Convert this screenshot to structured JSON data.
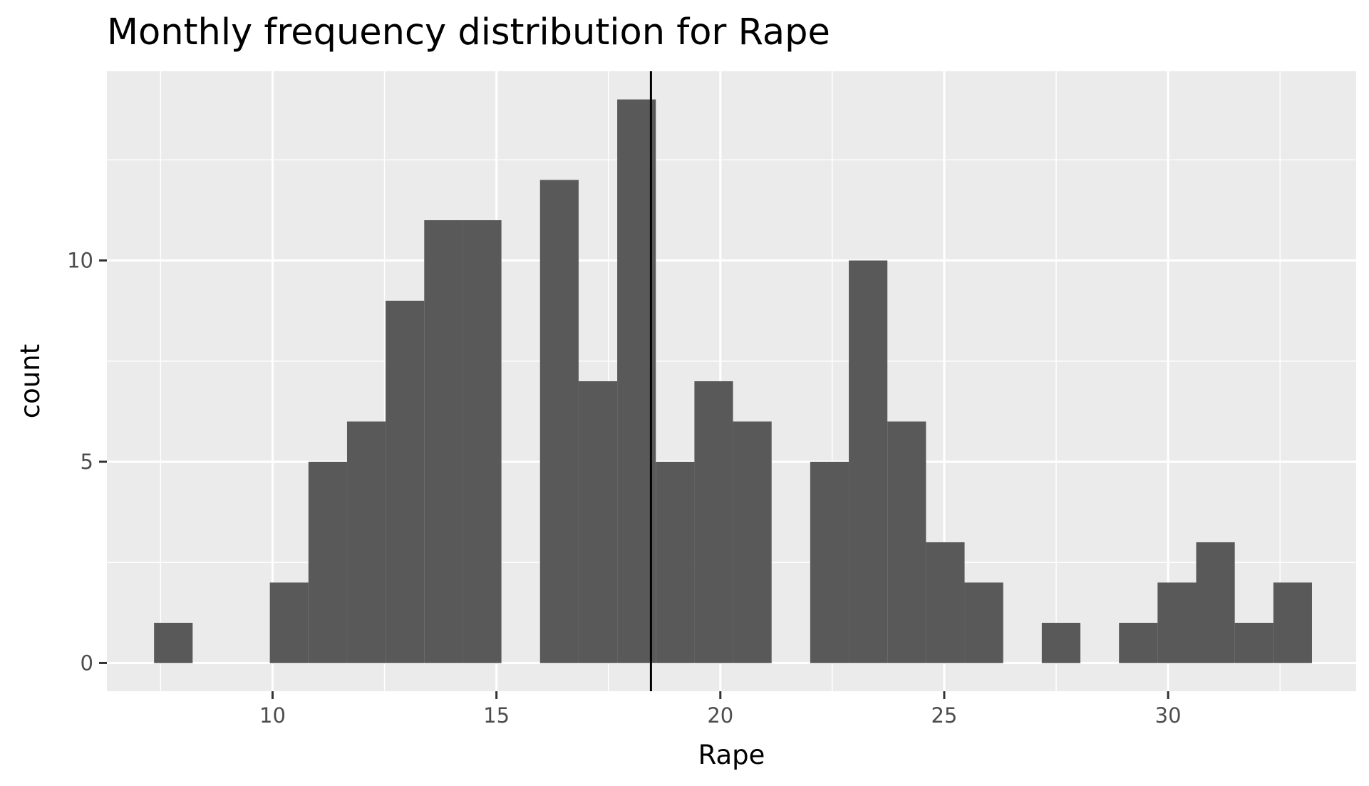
{
  "chart_data": {
    "type": "bar",
    "title": "Monthly frequency distribution for Rape",
    "xlabel": "Rape",
    "ylabel": "count",
    "xlim": [
      6.3,
      34.2
    ],
    "ylim": [
      -0.7,
      14.7
    ],
    "x_ticks": [
      10,
      15,
      20,
      25,
      30
    ],
    "y_ticks": [
      0,
      5,
      10
    ],
    "grid": true,
    "legend": "none",
    "bin_width": 0.862,
    "bins": [
      {
        "x": 7.784,
        "count": 1
      },
      {
        "x": 10.37,
        "count": 2
      },
      {
        "x": 11.232,
        "count": 5
      },
      {
        "x": 12.094,
        "count": 6
      },
      {
        "x": 12.956,
        "count": 9
      },
      {
        "x": 13.818,
        "count": 11
      },
      {
        "x": 14.68,
        "count": 11
      },
      {
        "x": 16.404,
        "count": 12
      },
      {
        "x": 17.266,
        "count": 7
      },
      {
        "x": 18.128,
        "count": 14
      },
      {
        "x": 18.99,
        "count": 5
      },
      {
        "x": 19.852,
        "count": 7
      },
      {
        "x": 20.714,
        "count": 6
      },
      {
        "x": 22.438,
        "count": 5
      },
      {
        "x": 23.3,
        "count": 10
      },
      {
        "x": 24.162,
        "count": 6
      },
      {
        "x": 25.024,
        "count": 3
      },
      {
        "x": 25.886,
        "count": 2
      },
      {
        "x": 27.61,
        "count": 1
      },
      {
        "x": 29.334,
        "count": 1
      },
      {
        "x": 30.196,
        "count": 2
      },
      {
        "x": 31.058,
        "count": 3
      },
      {
        "x": 31.92,
        "count": 1
      },
      {
        "x": 32.782,
        "count": 2
      }
    ],
    "reference_line": {
      "x": 18.45
    },
    "colors": {
      "bar": "#595959",
      "panel": "#ebebeb",
      "grid": "#ffffff",
      "reference": "#000000"
    }
  }
}
